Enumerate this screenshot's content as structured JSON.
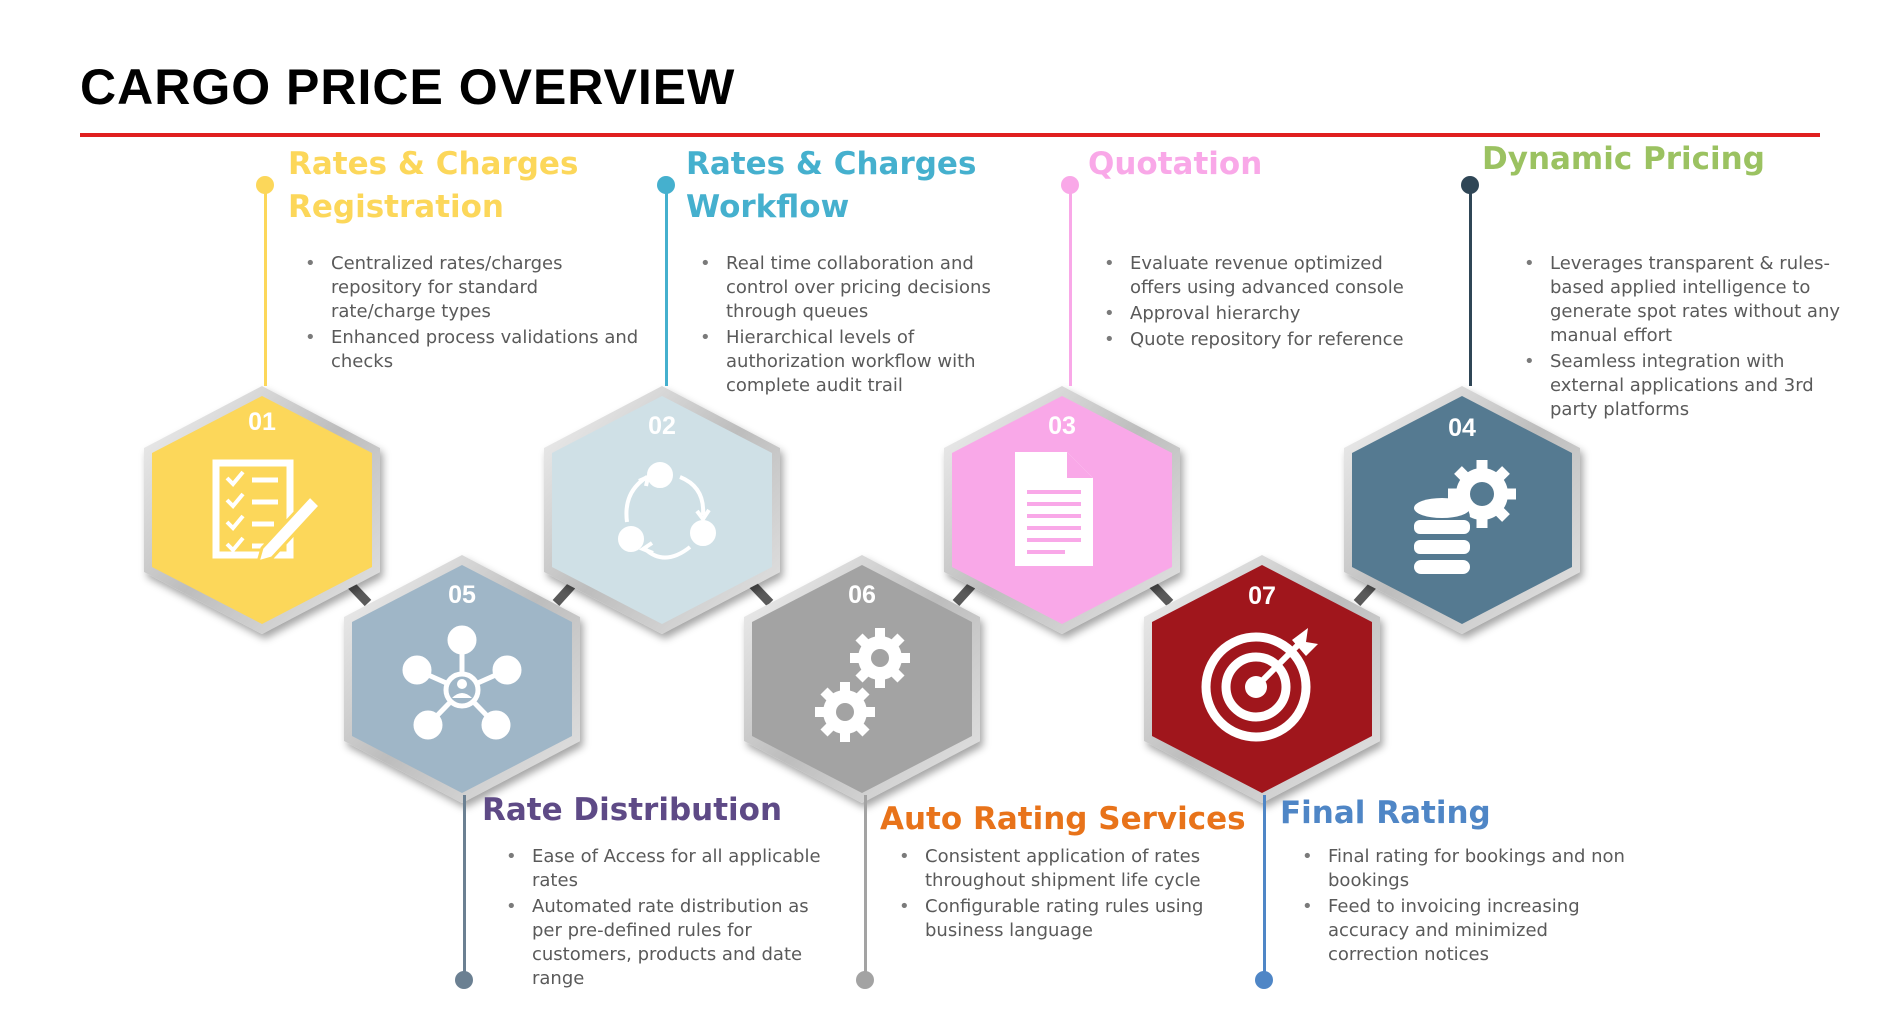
{
  "title": "CARGO PRICE OVERVIEW",
  "colors": {
    "rule": "#e02020",
    "connector": "#5a5a5a"
  },
  "steps": [
    {
      "number": "01",
      "heading": "Rates & Charges Registration",
      "heading_lines": [
        "Rates & Charges",
        "Registration"
      ],
      "color": "#fcd75a",
      "icon": "checklist-icon",
      "bullets": [
        "Centralized rates/charges repository for standard rate/charge types",
        "Enhanced process validations and checks"
      ]
    },
    {
      "number": "02",
      "heading": "Rates & Charges Workflow",
      "heading_lines": [
        "Rates & Charges",
        "Workflow"
      ],
      "color": "#45b0ce",
      "hex_color": "#cfe0e6",
      "icon": "cycle-icon",
      "bullets": [
        "Real time collaboration and control over pricing decisions through queues",
        "Hierarchical levels of authorization workflow with complete audit trail"
      ]
    },
    {
      "number": "03",
      "heading": "Quotation",
      "heading_lines": [
        "Quotation"
      ],
      "color": "#f9a8e8",
      "icon": "document-icon",
      "bullets": [
        "Evaluate revenue optimized offers using advanced console",
        "Approval hierarchy",
        "Quote repository for reference"
      ]
    },
    {
      "number": "04",
      "heading": "Dynamic Pricing",
      "heading_lines": [
        "Dynamic Pricing"
      ],
      "color": "#9bc261",
      "hex_color": "#557a91",
      "icon": "database-gear-icon",
      "bullets": [
        "Leverages transparent & rules-based applied intelligence to generate spot rates without any manual effort",
        "Seamless integration with external applications and 3rd party platforms"
      ]
    },
    {
      "number": "05",
      "heading": "Rate Distribution",
      "heading_lines": [
        "Rate Distribution"
      ],
      "color": "#5e4a86",
      "hex_color": "#9fb6c7",
      "icon": "network-icon",
      "bullets": [
        "Ease of Access for all applicable rates",
        "Automated rate distribution as per pre-defined rules for customers, products and date range"
      ]
    },
    {
      "number": "06",
      "heading": "Auto Rating Services",
      "heading_lines": [
        "Auto Rating Services"
      ],
      "color": "#e8731a",
      "hex_color": "#a3a3a3",
      "icon": "gears-icon",
      "bullets": [
        "Consistent application of rates throughout shipment life cycle",
        "Configurable rating rules using business language"
      ]
    },
    {
      "number": "07",
      "heading": "Final Rating",
      "heading_lines": [
        "Final Rating"
      ],
      "color": "#4f86c6",
      "hex_color": "#a0141f",
      "icon": "target-icon",
      "bullets": [
        "Final rating for bookings and non bookings",
        "Feed to invoicing increasing accuracy and minimized correction notices"
      ]
    }
  ]
}
